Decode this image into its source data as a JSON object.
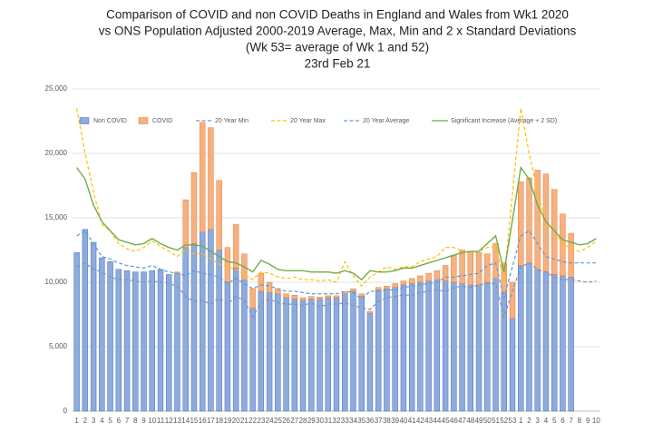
{
  "chart_data": {
    "type": "bar",
    "title": [
      "Comparison of COVID and non COVID Deaths in England and Wales from Wk1 2020",
      "vs ONS Population Adjusted 2000-2019 Average, Max, Min and 2 x Standard Deviations",
      "(Wk 53= average of Wk 1 and 52)",
      "23rd Feb 21"
    ],
    "categories": [
      "1",
      "2",
      "3",
      "4",
      "5",
      "6",
      "7",
      "8",
      "9",
      "10",
      "11",
      "12",
      "13",
      "14",
      "15",
      "16",
      "17",
      "18",
      "19",
      "20",
      "21",
      "22",
      "23",
      "24",
      "25",
      "26",
      "27",
      "28",
      "29",
      "30",
      "31",
      "32",
      "33",
      "34",
      "35",
      "36",
      "37",
      "38",
      "39",
      "40",
      "41",
      "42",
      "43",
      "44",
      "45",
      "46",
      "47",
      "48",
      "49",
      "50",
      "51",
      "52",
      "53",
      "1",
      "2",
      "3",
      "4",
      "5",
      "6",
      "7",
      "8",
      "9",
      "10"
    ],
    "ylim": [
      0,
      25000
    ],
    "yticks": [
      0,
      {
        "value": 5000,
        "label": "5,000"
      },
      {
        "value": 10000,
        "label": "10,000"
      },
      {
        "value": 15000,
        "label": "15,000"
      },
      {
        "value": 20000,
        "label": "20,000"
      },
      {
        "value": 25000,
        "label": "25,000"
      }
    ],
    "grid": true,
    "legend": "top",
    "series": [
      {
        "name": "Non COVID",
        "kind": "bar",
        "color": "#8faadc",
        "values": [
          12300,
          14100,
          13100,
          11900,
          11600,
          11000,
          10900,
          10800,
          10800,
          10900,
          11000,
          10600,
          10700,
          12700,
          13000,
          13900,
          14100,
          12500,
          10000,
          11100,
          10200,
          8000,
          9300,
          9200,
          9100,
          8800,
          8700,
          8600,
          8700,
          8700,
          8800,
          8800,
          9100,
          9300,
          8900,
          7600,
          9400,
          9500,
          9600,
          9800,
          9900,
          10000,
          10100,
          10200,
          10100,
          10000,
          9900,
          9800,
          9800,
          10000,
          10300,
          9200,
          7200,
          11300,
          11500,
          11000,
          10800,
          10600,
          10500,
          10400,
          null,
          null,
          null
        ]
      },
      {
        "name": "COVID",
        "kind": "bar",
        "color": "#f4b183",
        "values": [
          0,
          0,
          0,
          0,
          0,
          0,
          0,
          0,
          0,
          0,
          0,
          0,
          100,
          3700,
          5500,
          8500,
          7900,
          5400,
          2700,
          3400,
          2000,
          1500,
          1400,
          800,
          400,
          300,
          300,
          200,
          200,
          150,
          150,
          150,
          150,
          200,
          200,
          150,
          200,
          200,
          300,
          300,
          400,
          500,
          600,
          700,
          1200,
          2100,
          2600,
          2600,
          2500,
          2200,
          2700,
          2300,
          2800,
          6500,
          6600,
          7700,
          7600,
          6600,
          4800,
          3400,
          null,
          null,
          null
        ]
      },
      {
        "name": "20 Year Min",
        "kind": "line",
        "dash": true,
        "color": "#7f93b8",
        "values": [
          11200,
          11500,
          11000,
          10800,
          10400,
          10200,
          10200,
          10100,
          10000,
          10100,
          10000,
          9900,
          9700,
          8900,
          8500,
          8600,
          8300,
          8800,
          8300,
          8900,
          8600,
          7300,
          8400,
          8700,
          8400,
          8300,
          8300,
          8200,
          8400,
          8100,
          8300,
          8300,
          8400,
          8200,
          8000,
          7900,
          8500,
          8800,
          8900,
          9000,
          9000,
          9200,
          9300,
          9400,
          9300,
          9600,
          9700,
          9600,
          9800,
          9900,
          9900,
          7300,
          9300,
          11200,
          11500,
          11000,
          10800,
          10400,
          10200,
          10200,
          10100,
          10000,
          10100
        ]
      },
      {
        "name": "20 Year Max",
        "kind": "line",
        "dash": true,
        "color": "#ffc000",
        "values": [
          23500,
          20000,
          17000,
          14500,
          14000,
          13000,
          12600,
          12400,
          12700,
          13200,
          12800,
          12400,
          12000,
          12500,
          12200,
          12200,
          11800,
          11400,
          11200,
          11000,
          10600,
          10200,
          10800,
          10700,
          10400,
          10300,
          10400,
          10200,
          10200,
          10100,
          10200,
          10000,
          11600,
          10500,
          9700,
          10400,
          10800,
          11200,
          11000,
          11200,
          11200,
          11600,
          11800,
          12000,
          12700,
          12700,
          12400,
          12300,
          12400,
          12700,
          12800,
          10200,
          16800,
          23500,
          20000,
          17000,
          14500,
          14000,
          13000,
          12600,
          12400,
          12700,
          13200
        ]
      },
      {
        "name": "20 Year Average",
        "kind": "line",
        "dash": true,
        "color": "#5b9bd5",
        "values": [
          13600,
          14000,
          13000,
          12000,
          11800,
          11500,
          11300,
          11200,
          11100,
          11300,
          11000,
          10800,
          10700,
          10500,
          10900,
          10700,
          10600,
          10400,
          9900,
          10300,
          9900,
          9500,
          9800,
          9700,
          9500,
          9300,
          9300,
          9200,
          9100,
          9100,
          9100,
          9100,
          9300,
          9200,
          8700,
          9300,
          9300,
          9400,
          9400,
          9600,
          9700,
          9800,
          9900,
          10000,
          10400,
          10400,
          10500,
          10600,
          10700,
          11300,
          11500,
          8800,
          11200,
          13600,
          14000,
          13000,
          12000,
          11800,
          11600,
          11500,
          11500,
          11500,
          11500
        ]
      },
      {
        "name": "Significant Increase (Average + 2 SD)",
        "kind": "line",
        "dash": false,
        "color": "#70ad47",
        "values": [
          18900,
          18000,
          16000,
          14700,
          14000,
          13300,
          13100,
          12900,
          13000,
          13400,
          13000,
          12700,
          12500,
          12900,
          12900,
          12800,
          12400,
          12000,
          11600,
          11500,
          11200,
          10800,
          11700,
          11400,
          11000,
          10900,
          10900,
          10900,
          10800,
          10800,
          10800,
          10700,
          10900,
          10700,
          10200,
          10900,
          10800,
          10800,
          10900,
          11100,
          11100,
          11300,
          11500,
          11700,
          11900,
          12100,
          12300,
          12400,
          12400,
          13000,
          13600,
          10800,
          14800,
          18900,
          18000,
          16000,
          14700,
          14000,
          13300,
          13100,
          12900,
          13000,
          13400
        ]
      }
    ]
  }
}
